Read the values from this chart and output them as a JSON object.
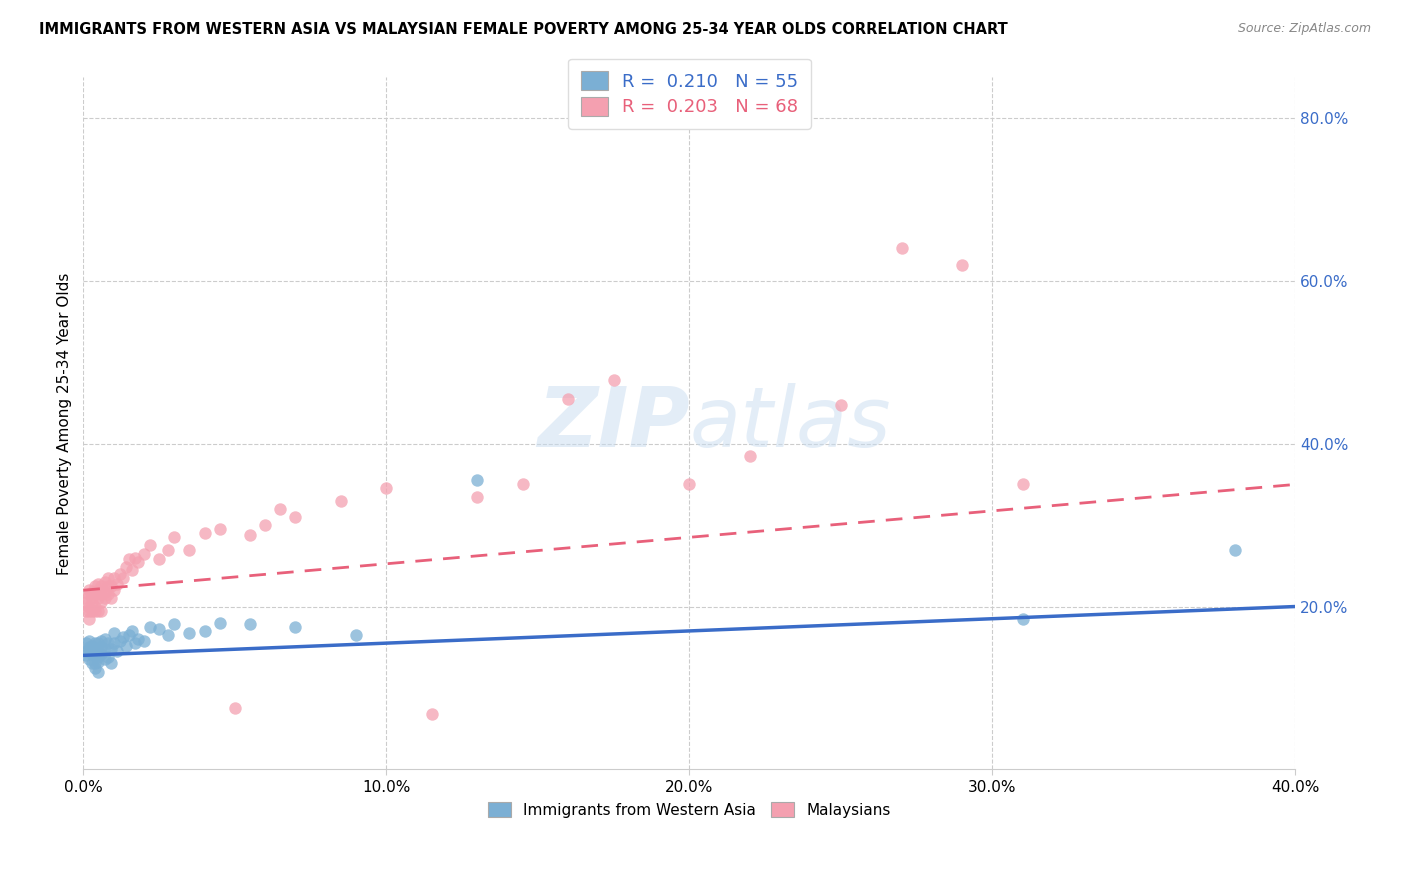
{
  "title": "IMMIGRANTS FROM WESTERN ASIA VS MALAYSIAN FEMALE POVERTY AMONG 25-34 YEAR OLDS CORRELATION CHART",
  "source": "Source: ZipAtlas.com",
  "ylabel": "Female Poverty Among 25-34 Year Olds",
  "xlim": [
    0.0,
    0.4
  ],
  "ylim": [
    0.0,
    0.85
  ],
  "xticks": [
    0.0,
    0.1,
    0.2,
    0.3,
    0.4
  ],
  "xtick_labels": [
    "0.0%",
    "10.0%",
    "20.0%",
    "30.0%",
    "40.0%"
  ],
  "yticks_right": [
    0.2,
    0.4,
    0.6,
    0.8
  ],
  "ytick_right_labels": [
    "20.0%",
    "40.0%",
    "60.0%",
    "80.0%"
  ],
  "blue_color": "#7BAFD4",
  "pink_color": "#F4A0B0",
  "blue_line_color": "#3A6CC8",
  "pink_line_color": "#E8607A",
  "watermark_color": "#C8DCF0",
  "legend_label1": "Immigrants from Western Asia",
  "legend_label2": "Malaysians",
  "blue_scatter_x": [
    0.001,
    0.001,
    0.001,
    0.002,
    0.002,
    0.002,
    0.002,
    0.003,
    0.003,
    0.003,
    0.003,
    0.003,
    0.004,
    0.004,
    0.004,
    0.004,
    0.005,
    0.005,
    0.005,
    0.005,
    0.005,
    0.006,
    0.006,
    0.006,
    0.007,
    0.007,
    0.007,
    0.008,
    0.008,
    0.009,
    0.009,
    0.01,
    0.01,
    0.011,
    0.012,
    0.013,
    0.014,
    0.015,
    0.016,
    0.017,
    0.018,
    0.02,
    0.022,
    0.025,
    0.028,
    0.03,
    0.035,
    0.04,
    0.045,
    0.055,
    0.07,
    0.09,
    0.13,
    0.31,
    0.38
  ],
  "blue_scatter_y": [
    0.145,
    0.14,
    0.155,
    0.135,
    0.148,
    0.15,
    0.158,
    0.13,
    0.142,
    0.148,
    0.152,
    0.145,
    0.125,
    0.13,
    0.14,
    0.155,
    0.12,
    0.132,
    0.138,
    0.148,
    0.155,
    0.142,
    0.15,
    0.158,
    0.135,
    0.148,
    0.16,
    0.138,
    0.155,
    0.13,
    0.148,
    0.155,
    0.168,
    0.145,
    0.158,
    0.162,
    0.152,
    0.165,
    0.17,
    0.155,
    0.16,
    0.158,
    0.175,
    0.172,
    0.165,
    0.178,
    0.168,
    0.17,
    0.18,
    0.178,
    0.175,
    0.165,
    0.355,
    0.185,
    0.27
  ],
  "pink_scatter_x": [
    0.001,
    0.001,
    0.001,
    0.002,
    0.002,
    0.002,
    0.002,
    0.002,
    0.003,
    0.003,
    0.003,
    0.003,
    0.004,
    0.004,
    0.004,
    0.004,
    0.005,
    0.005,
    0.005,
    0.005,
    0.006,
    0.006,
    0.006,
    0.006,
    0.007,
    0.007,
    0.007,
    0.008,
    0.008,
    0.008,
    0.009,
    0.009,
    0.01,
    0.01,
    0.011,
    0.012,
    0.013,
    0.014,
    0.015,
    0.016,
    0.017,
    0.018,
    0.02,
    0.022,
    0.025,
    0.028,
    0.03,
    0.035,
    0.04,
    0.045,
    0.05,
    0.055,
    0.06,
    0.065,
    0.07,
    0.085,
    0.1,
    0.115,
    0.13,
    0.145,
    0.16,
    0.175,
    0.2,
    0.22,
    0.25,
    0.27,
    0.29,
    0.31
  ],
  "pink_scatter_y": [
    0.205,
    0.21,
    0.195,
    0.2,
    0.215,
    0.22,
    0.195,
    0.185,
    0.21,
    0.218,
    0.195,
    0.205,
    0.215,
    0.225,
    0.195,
    0.2,
    0.22,
    0.21,
    0.195,
    0.228,
    0.215,
    0.225,
    0.205,
    0.195,
    0.23,
    0.218,
    0.21,
    0.225,
    0.235,
    0.215,
    0.225,
    0.21,
    0.235,
    0.22,
    0.228,
    0.24,
    0.235,
    0.248,
    0.258,
    0.245,
    0.26,
    0.255,
    0.265,
    0.275,
    0.258,
    0.27,
    0.285,
    0.27,
    0.29,
    0.295,
    0.075,
    0.288,
    0.3,
    0.32,
    0.31,
    0.33,
    0.345,
    0.068,
    0.335,
    0.35,
    0.455,
    0.478,
    0.35,
    0.385,
    0.448,
    0.64,
    0.62,
    0.35
  ],
  "blue_line_x0": 0.0,
  "blue_line_y0": 0.14,
  "blue_line_x1": 0.4,
  "blue_line_y1": 0.2,
  "pink_line_x0": 0.0,
  "pink_line_y0": 0.22,
  "pink_line_x1": 0.4,
  "pink_line_y1": 0.35
}
